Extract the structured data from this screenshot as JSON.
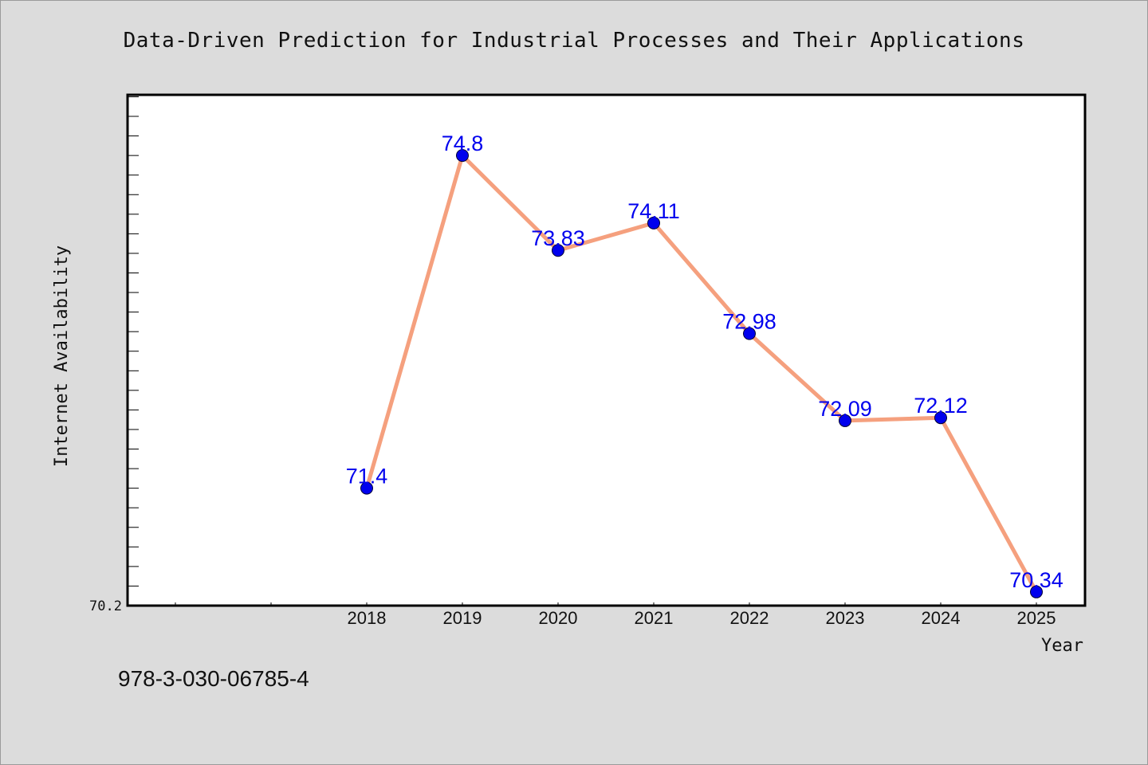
{
  "chart_data": {
    "type": "line",
    "title": "Data-Driven Prediction for Industrial Processes and Their Applications",
    "xlabel": "Year",
    "ylabel": "Internet Availability",
    "x": [
      "2018",
      "2019",
      "2020",
      "2021",
      "2022",
      "2023",
      "2024",
      "2025"
    ],
    "series": [
      {
        "values": [
          71.4,
          74.8,
          73.83,
          74.11,
          72.98,
          72.09,
          72.12,
          70.34
        ]
      }
    ],
    "data_labels": [
      "71.4",
      "74.8",
      "73.83",
      "74.11",
      "72.98",
      "72.09",
      "72.12",
      "70.34"
    ],
    "y_tick_label": "70.2",
    "ylim": [
      70.2,
      75.42
    ],
    "grid": false,
    "colors": {
      "line": "#f5a07e",
      "marker": "#0000ee",
      "label": "#0000ee"
    }
  },
  "footer": {
    "isbn": "978-3-030-06785-4"
  }
}
